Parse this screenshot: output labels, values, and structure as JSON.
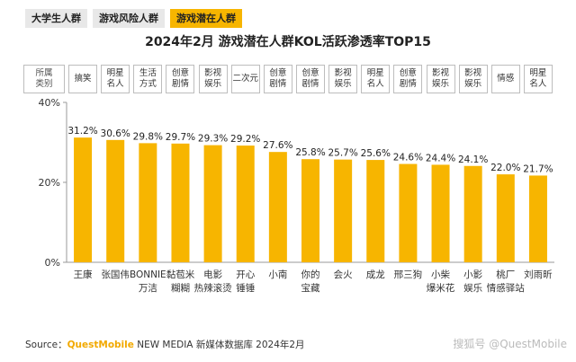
{
  "tabs": [
    {
      "label": "大学生人群",
      "active": false
    },
    {
      "label": "游戏风险人群",
      "active": false
    },
    {
      "label": "游戏潜在人群",
      "active": true
    }
  ],
  "category_header": "所属\n类别",
  "categories_row": [
    "搞笑",
    "明星\n名人",
    "生活\n方式",
    "创意\n剧情",
    "影视\n娱乐",
    "二次元",
    "创意\n剧情",
    "创意\n剧情",
    "影视\n娱乐",
    "明星\n名人",
    "创意\n剧情",
    "影视\n娱乐",
    "影视\n娱乐",
    "情感",
    "明星\n名人"
  ],
  "source_prefix": "Source：",
  "source_brand": "QuestMobile",
  "source_suffix": " NEW MEDIA 新媒体数据库 2024年2月",
  "watermark": "搜狐号 @QuestMobile",
  "colors": {
    "bar": "#f7b500",
    "tab_active": "#f7b500",
    "axis": "#999999"
  },
  "chart_data": {
    "type": "bar",
    "title": "2024年2月 游戏潜在人群KOL活跃渗透率TOP15",
    "categories": [
      "王康",
      "张国伟",
      "BONNIE\n万洁",
      "黏苞米\n糊糊",
      "电影\n热辣滚烫",
      "开心\n锤锤",
      "小南",
      "你的\n宝藏",
      "会火",
      "成龙",
      "邢三狗",
      "小柴\n爆米花",
      "小影\n娱乐",
      "桃厂\n情感驿站",
      "刘雨昕"
    ],
    "values": [
      31.2,
      30.6,
      29.8,
      29.7,
      29.3,
      29.2,
      27.6,
      25.8,
      25.7,
      25.6,
      24.6,
      24.4,
      24.1,
      22.0,
      21.7
    ],
    "value_labels": [
      "31.2%",
      "30.6%",
      "29.8%",
      "29.7%",
      "29.3%",
      "29.2%",
      "27.6%",
      "25.8%",
      "25.7%",
      "25.6%",
      "24.6%",
      "24.4%",
      "24.1%",
      "22.0%",
      "21.7%"
    ],
    "yticks": [
      "0%",
      "20%",
      "40%"
    ],
    "ylim": [
      0,
      40
    ],
    "xlabel": "",
    "ylabel": "",
    "grid": false,
    "legend": "none"
  }
}
